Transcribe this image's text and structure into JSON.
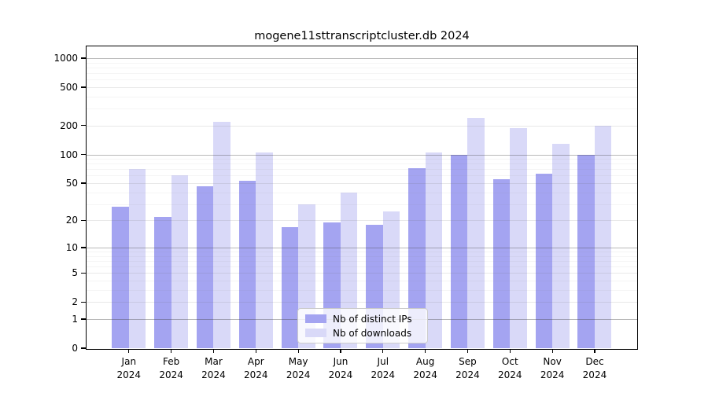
{
  "chart_data": {
    "type": "bar",
    "title": "mogene11sttranscriptcluster.db 2024",
    "categories": [
      "Jan",
      "Feb",
      "Mar",
      "Apr",
      "May",
      "Jun",
      "Jul",
      "Aug",
      "Sep",
      "Oct",
      "Nov",
      "Dec"
    ],
    "x_year_label": "2024",
    "series": [
      {
        "name": "Nb of distinct IPs",
        "color": "#a4a4f1",
        "values": [
          28,
          22,
          46,
          53,
          17,
          19,
          18,
          72,
          100,
          55,
          63,
          100
        ]
      },
      {
        "name": "Nb of downloads",
        "color": "#d9d9f8",
        "values": [
          70,
          60,
          220,
          105,
          30,
          40,
          25,
          105,
          240,
          190,
          130,
          200
        ]
      }
    ],
    "y_scale": "log1p",
    "y_ticks": [
      0,
      1,
      2,
      5,
      10,
      20,
      50,
      100,
      200,
      500,
      1000
    ],
    "y_decade_gridlines": [
      1,
      10,
      100,
      1000
    ],
    "y_minor_gridlines": [
      3,
      4,
      6,
      7,
      8,
      9,
      30,
      40,
      60,
      70,
      80,
      90,
      300,
      400,
      600,
      700,
      800,
      900
    ],
    "ylim": [
      0,
      1340
    ],
    "grid": true,
    "legend_position": "bottom-center",
    "xlabel": "",
    "ylabel": ""
  },
  "legend": {
    "items": [
      {
        "label": "Nb of distinct IPs",
        "color": "#a4a4f1"
      },
      {
        "label": "Nb of downloads",
        "color": "#d9d9f8"
      }
    ]
  }
}
